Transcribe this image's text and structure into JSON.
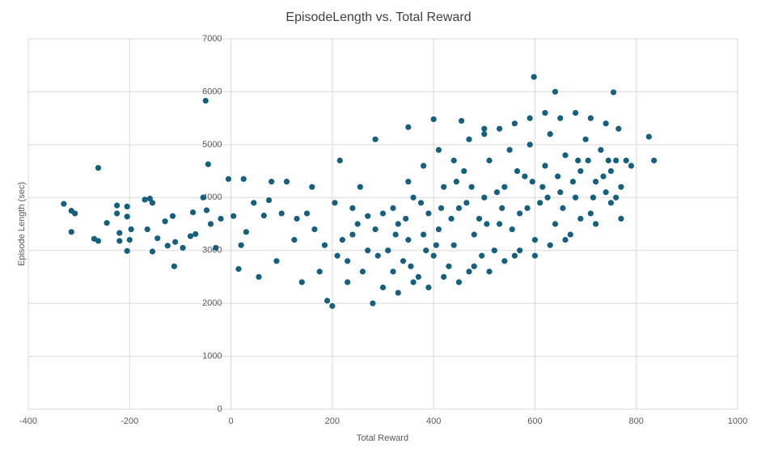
{
  "chart_data": {
    "type": "scatter",
    "title": "EpisodeLength vs. Total Reward",
    "x_label": "Total Reward",
    "y_label": "Episode Length (sec)",
    "color": "#15607f",
    "grid": true,
    "xlim": [
      -400,
      1000
    ],
    "xticks": [
      -400,
      -200,
      0,
      200,
      400,
      600,
      800,
      1000
    ],
    "ylim": [
      0,
      7000
    ],
    "yticks": [
      0,
      1000,
      2000,
      3000,
      4000,
      5000,
      6000,
      7000
    ],
    "x": [
      -330,
      -315,
      -315,
      -308,
      -262,
      -262,
      -270,
      -245,
      -225,
      -225,
      -220,
      -220,
      -205,
      -205,
      -205,
      -200,
      -197,
      -170,
      -165,
      -160,
      -155,
      -155,
      -145,
      -130,
      -125,
      -115,
      -112,
      -110,
      -95,
      -80,
      -75,
      -70,
      -55,
      -50,
      -48,
      -45,
      -40,
      -30,
      -20,
      -5,
      5,
      15,
      20,
      25,
      30,
      45,
      55,
      65,
      75,
      80,
      90,
      100,
      110,
      125,
      130,
      140,
      150,
      160,
      165,
      175,
      185,
      190,
      200,
      205,
      215,
      230,
      240,
      255,
      270,
      280,
      285,
      598,
      640,
      755,
      825,
      835,
      350,
      400,
      500,
      455,
      310,
      320,
      330,
      340,
      350,
      360,
      370,
      380,
      390,
      400,
      410,
      420,
      430,
      440,
      450,
      460,
      470,
      480,
      490,
      500,
      510,
      520,
      530,
      540,
      550,
      560,
      570,
      580,
      590,
      600,
      610,
      620,
      630,
      640,
      650,
      660,
      670,
      680,
      690,
      700,
      710,
      720,
      730,
      740,
      750,
      760,
      770,
      300,
      330,
      360,
      390,
      420,
      450,
      480,
      510,
      540,
      570,
      600,
      630,
      660,
      690,
      720,
      750,
      770,
      320,
      350,
      380,
      410,
      440,
      470,
      500,
      530,
      560,
      590,
      620,
      650,
      680,
      710,
      740,
      765,
      780,
      790,
      345,
      375,
      405,
      435,
      465,
      495,
      525,
      555,
      585,
      615,
      645,
      675,
      705,
      735,
      760,
      325,
      355,
      385,
      415,
      445,
      475,
      505,
      535,
      565,
      595,
      625,
      655,
      685,
      715,
      745,
      300,
      290,
      285,
      270,
      260,
      250,
      240,
      230,
      220,
      210
    ],
    "values": [
      3880,
      3350,
      3750,
      3700,
      4560,
      3180,
      3220,
      3520,
      3850,
      3700,
      3330,
      3180,
      3830,
      3640,
      2990,
      3200,
      3400,
      3960,
      3400,
      3980,
      3900,
      2980,
      3230,
      3550,
      3090,
      3650,
      2700,
      3160,
      3050,
      3270,
      3720,
      3310,
      4000,
      5830,
      3760,
      4630,
      3500,
      3050,
      3600,
      4350,
      3650,
      2650,
      3100,
      4350,
      3350,
      3900,
      2500,
      3660,
      3950,
      4300,
      2800,
      3700,
      4300,
      3200,
      3600,
      2400,
      3700,
      4200,
      3400,
      2600,
      3100,
      2050,
      1950,
      3900,
      4700,
      2800,
      3300,
      4200,
      3650,
      2000,
      5100,
      6280,
      6000,
      5990,
      5150,
      4700,
      5330,
      5480,
      5300,
      5450,
      3000,
      2600,
      3500,
      2800,
      3200,
      4000,
      2500,
      3300,
      3700,
      2900,
      3400,
      4200,
      2700,
      3100,
      3800,
      4500,
      2600,
      3300,
      3600,
      4000,
      4700,
      3000,
      3500,
      4200,
      4900,
      2900,
      3700,
      4400,
      5000,
      3200,
      3900,
      4600,
      5200,
      3500,
      4100,
      4800,
      3300,
      4000,
      4500,
      5100,
      3700,
      4300,
      4900,
      4100,
      4500,
      4700,
      4200,
      2300,
      2200,
      2400,
      2300,
      2500,
      2400,
      2700,
      2600,
      2800,
      3000,
      2900,
      3100,
      3200,
      3600,
      3500,
      3900,
      3600,
      3800,
      4300,
      4600,
      4900,
      4700,
      5100,
      5200,
      5300,
      5400,
      5500,
      5600,
      5500,
      5600,
      5500,
      5400,
      5300,
      4700,
      4600,
      3600,
      3900,
      3100,
      3600,
      3900,
      2900,
      4100,
      3400,
      3800,
      4200,
      4400,
      4300,
      4700,
      4400,
      4000,
      3300,
      2700,
      3000,
      3800,
      4300,
      4200,
      3500,
      3800,
      4500,
      4300,
      4000,
      3800,
      4700,
      4000,
      4700,
      3700,
      2900,
      3400,
      3000,
      2600,
      3500,
      3800,
      2400,
      3200,
      2900
    ]
  }
}
